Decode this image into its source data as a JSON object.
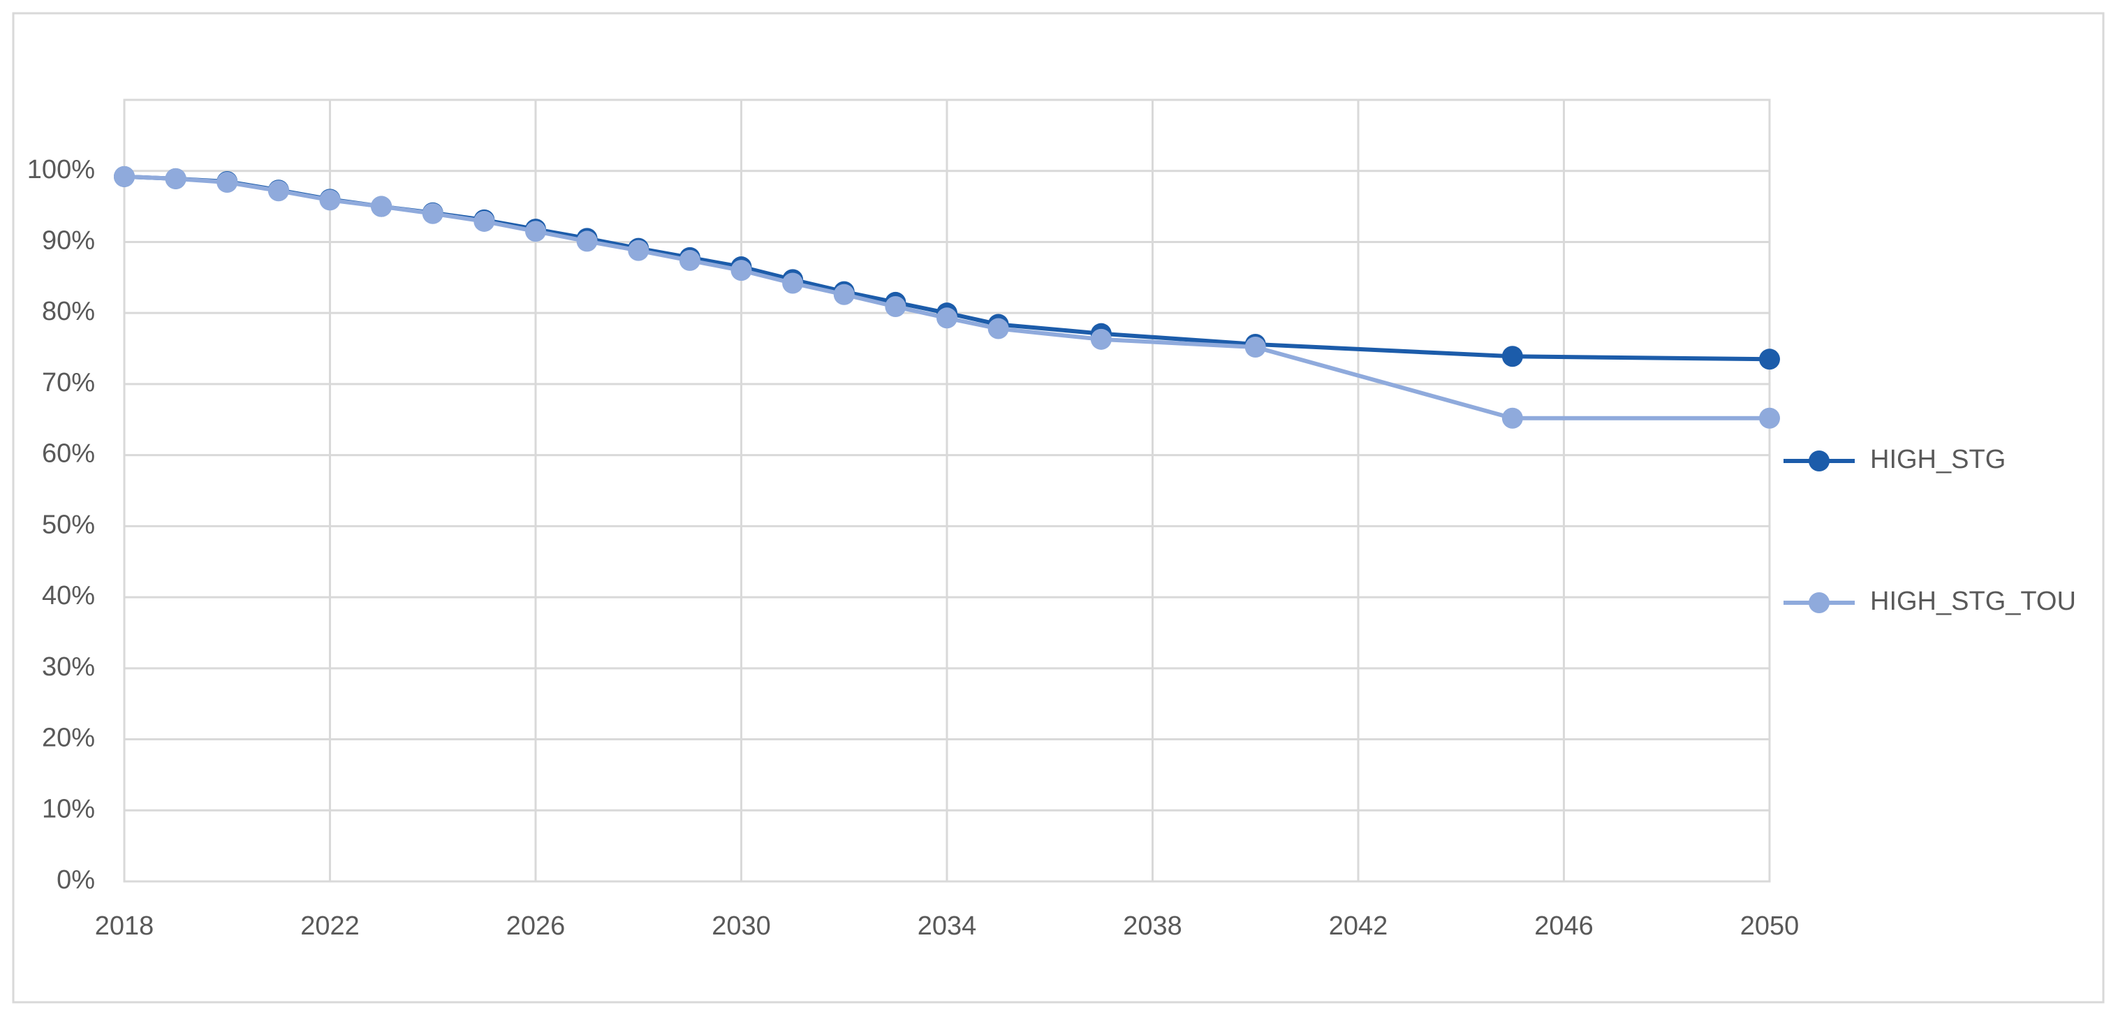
{
  "chart_data": {
    "type": "line",
    "x": [
      2018,
      2019,
      2020,
      2021,
      2022,
      2023,
      2024,
      2025,
      2026,
      2027,
      2028,
      2029,
      2030,
      2031,
      2032,
      2033,
      2034,
      2035,
      2037,
      2040,
      2045,
      2050
    ],
    "series": [
      {
        "name": "HIGH_STG",
        "color": "#1c5caa",
        "values": [
          99.2,
          98.9,
          98.5,
          97.3,
          96.0,
          95.0,
          94.1,
          93.1,
          91.8,
          90.5,
          89.1,
          87.8,
          86.5,
          84.7,
          83.0,
          81.5,
          80.0,
          78.4,
          77.1,
          75.6,
          73.9,
          73.5
        ]
      },
      {
        "name": "HIGH_STG_TOU",
        "color": "#8faadc",
        "values": [
          99.2,
          98.9,
          98.4,
          97.2,
          95.9,
          95.0,
          94.0,
          92.9,
          91.5,
          90.1,
          88.8,
          87.4,
          86.0,
          84.2,
          82.6,
          80.9,
          79.3,
          77.8,
          76.3,
          75.2,
          65.2,
          65.2
        ]
      }
    ],
    "xlim": [
      2018,
      2050
    ],
    "xticks": [
      2018,
      2022,
      2026,
      2030,
      2034,
      2038,
      2042,
      2046,
      2050
    ],
    "ylim": [
      0,
      110
    ],
    "yticks": [
      {
        "value": 0,
        "label": "0%"
      },
      {
        "value": 10,
        "label": "10%"
      },
      {
        "value": 20,
        "label": "20%"
      },
      {
        "value": 30,
        "label": "30%"
      },
      {
        "value": 40,
        "label": "40%"
      },
      {
        "value": 50,
        "label": "50%"
      },
      {
        "value": 60,
        "label": "60%"
      },
      {
        "value": 70,
        "label": "70%"
      },
      {
        "value": 80,
        "label": "80%"
      },
      {
        "value": 90,
        "label": "90%"
      },
      {
        "value": 100,
        "label": "100%"
      }
    ],
    "grid": true,
    "legend": "right"
  }
}
